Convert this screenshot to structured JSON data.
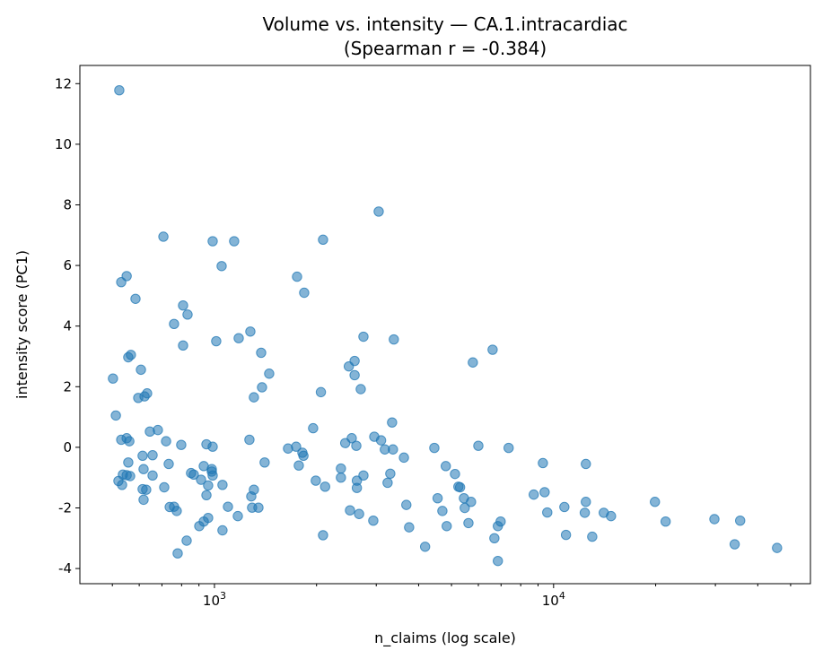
{
  "chart_data": {
    "type": "scatter",
    "title": "Volume vs. intensity — CA.1.intracardiac",
    "subtitle": "(Spearman r = -0.384)",
    "xlabel": "n_claims (log scale)",
    "ylabel": "intensity score (PC1)",
    "xscale": "log",
    "xlim": [
      401,
      57200
    ],
    "ylim": [
      -4.5,
      12.6
    ],
    "xticks": [
      {
        "value": 1000,
        "base": "10",
        "exp": "3"
      },
      {
        "value": 10000,
        "base": "10",
        "exp": "4"
      }
    ],
    "yticks": [
      -4,
      -2,
      0,
      2,
      4,
      6,
      8,
      10,
      12
    ],
    "grid": false,
    "point_color": "#1f77b4",
    "point_alpha": 0.55,
    "points": [
      [
        524,
        11.78
      ],
      [
        707,
        6.95
      ],
      [
        988,
        6.8
      ],
      [
        1143,
        6.8
      ],
      [
        1050,
        5.98
      ],
      [
        531,
        5.45
      ],
      [
        551,
        5.65
      ],
      [
        585,
        4.9
      ],
      [
        808,
        4.68
      ],
      [
        833,
        4.38
      ],
      [
        760,
        4.07
      ],
      [
        808,
        3.36
      ],
      [
        1012,
        3.5
      ],
      [
        1179,
        3.6
      ],
      [
        1276,
        3.82
      ],
      [
        1373,
        3.12
      ],
      [
        557,
        2.97
      ],
      [
        567,
        3.05
      ],
      [
        607,
        2.56
      ],
      [
        502,
        2.27
      ],
      [
        596,
        1.63
      ],
      [
        622,
        1.68
      ],
      [
        633,
        1.78
      ],
      [
        512,
        1.05
      ],
      [
        1307,
        1.65
      ],
      [
        1381,
        1.98
      ],
      [
        1450,
        2.43
      ],
      [
        531,
        0.25
      ],
      [
        551,
        0.3
      ],
      [
        561,
        0.2
      ],
      [
        681,
        0.57
      ],
      [
        645,
        0.52
      ],
      [
        720,
        0.2
      ],
      [
        798,
        0.08
      ],
      [
        947,
        0.1
      ],
      [
        988,
        0.02
      ],
      [
        1268,
        0.25
      ],
      [
        537,
        -0.9
      ],
      [
        551,
        -0.92
      ],
      [
        564,
        -0.95
      ],
      [
        521,
        -1.11
      ],
      [
        534,
        -1.24
      ],
      [
        557,
        -0.5
      ],
      [
        614,
        -0.28
      ],
      [
        657,
        -0.26
      ],
      [
        618,
        -0.72
      ],
      [
        657,
        -0.93
      ],
      [
        614,
        -1.38
      ],
      [
        629,
        -1.4
      ],
      [
        618,
        -1.73
      ],
      [
        711,
        -1.32
      ],
      [
        733,
        -0.55
      ],
      [
        853,
        -0.85
      ],
      [
        869,
        -0.9
      ],
      [
        913,
        -1.07
      ],
      [
        930,
        -0.62
      ],
      [
        982,
        -0.72
      ],
      [
        988,
        -0.93
      ],
      [
        982,
        -0.8
      ],
      [
        958,
        -1.26
      ],
      [
        947,
        -1.58
      ],
      [
        1056,
        -1.24
      ],
      [
        738,
        -1.97
      ],
      [
        760,
        -1.96
      ],
      [
        774,
        -2.1
      ],
      [
        958,
        -2.33
      ],
      [
        930,
        -2.45
      ],
      [
        902,
        -2.6
      ],
      [
        1096,
        -1.96
      ],
      [
        1172,
        -2.27
      ],
      [
        1291,
        -1.99
      ],
      [
        1284,
        -1.62
      ],
      [
        1307,
        -1.4
      ],
      [
        1348,
        -1.99
      ],
      [
        828,
        -3.08
      ],
      [
        779,
        -3.5
      ],
      [
        1056,
        -2.74
      ],
      [
        1406,
        -0.5
      ],
      [
        3050,
        7.78
      ],
      [
        2090,
        6.85
      ],
      [
        1752,
        5.63
      ],
      [
        1839,
        5.1
      ],
      [
        2750,
        3.65
      ],
      [
        3380,
        3.56
      ],
      [
        2490,
        2.67
      ],
      [
        2590,
        2.85
      ],
      [
        2590,
        2.38
      ],
      [
        2700,
        1.92
      ],
      [
        2060,
        1.82
      ],
      [
        1954,
        0.63
      ],
      [
        1648,
        -0.04
      ],
      [
        1741,
        0.02
      ],
      [
        1817,
        -0.18
      ],
      [
        1830,
        -0.28
      ],
      [
        1773,
        -0.6
      ],
      [
        2430,
        0.14
      ],
      [
        2540,
        0.3
      ],
      [
        2620,
        0.05
      ],
      [
        2960,
        0.35
      ],
      [
        3100,
        0.23
      ],
      [
        3340,
        0.82
      ],
      [
        3180,
        -0.07
      ],
      [
        3360,
        -0.07
      ],
      [
        3620,
        -0.34
      ],
      [
        1990,
        -1.1
      ],
      [
        2120,
        -1.3
      ],
      [
        2360,
        -0.7
      ],
      [
        2360,
        -1.0
      ],
      [
        2630,
        -1.1
      ],
      [
        2630,
        -1.34
      ],
      [
        2750,
        -0.93
      ],
      [
        3300,
        -0.87
      ],
      [
        3240,
        -1.17
      ],
      [
        2510,
        -2.08
      ],
      [
        2670,
        -2.2
      ],
      [
        2940,
        -2.42
      ],
      [
        2090,
        -2.9
      ],
      [
        3680,
        -1.9
      ],
      [
        3750,
        -2.64
      ],
      [
        4180,
        -3.28
      ],
      [
        4450,
        -0.02
      ],
      [
        4550,
        -1.68
      ],
      [
        4700,
        -2.1
      ],
      [
        4810,
        -0.62
      ],
      [
        4840,
        -2.6
      ],
      [
        5120,
        -0.88
      ],
      [
        5240,
        -1.3
      ],
      [
        5300,
        -1.32
      ],
      [
        5440,
        -1.68
      ],
      [
        5470,
        -2.0
      ],
      [
        5610,
        -2.5
      ],
      [
        5710,
        -1.8
      ],
      [
        5780,
        2.8
      ],
      [
        6000,
        0.05
      ],
      [
        6610,
        3.22
      ],
      [
        7370,
        -0.02
      ],
      [
        6690,
        -3.0
      ],
      [
        6850,
        -2.6
      ],
      [
        6980,
        -2.45
      ],
      [
        6850,
        -3.75
      ],
      [
        8740,
        -1.56
      ],
      [
        9300,
        -0.52
      ],
      [
        9410,
        -1.48
      ],
      [
        9580,
        -2.15
      ],
      [
        10760,
        -1.97
      ],
      [
        10880,
        -2.89
      ],
      [
        12450,
        -0.55
      ],
      [
        12450,
        -1.8
      ],
      [
        12360,
        -2.16
      ],
      [
        13000,
        -2.95
      ],
      [
        14060,
        -2.16
      ],
      [
        14770,
        -2.27
      ],
      [
        19900,
        -1.8
      ],
      [
        21400,
        -2.45
      ],
      [
        29800,
        -2.37
      ],
      [
        34200,
        -3.2
      ],
      [
        35500,
        -2.42
      ],
      [
        45600,
        -3.32
      ]
    ]
  }
}
